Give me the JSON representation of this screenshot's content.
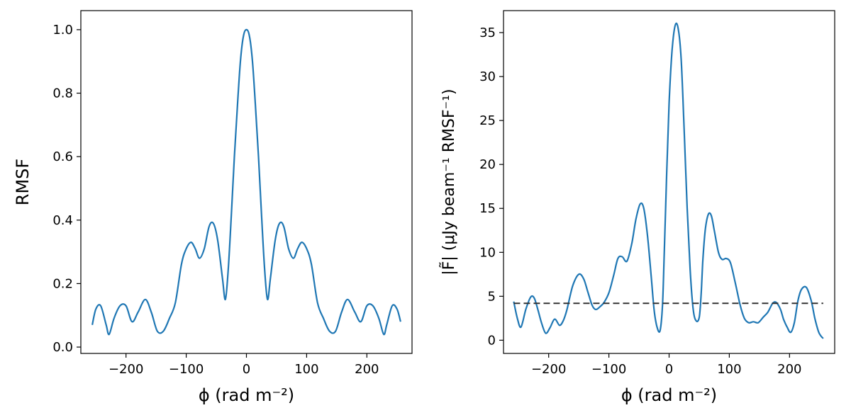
{
  "chart_data": [
    {
      "type": "line",
      "xlabel": "ϕ (rad m⁻²)",
      "ylabel": "RMSF",
      "xlim": [
        -275,
        275
      ],
      "ylim": [
        -0.02,
        1.06
      ],
      "xticks": [
        -200,
        -100,
        0,
        100,
        200
      ],
      "xtick_labels": [
        "−200",
        "−100",
        "0",
        "100",
        "200"
      ],
      "yticks": [
        0.0,
        0.2,
        0.4,
        0.6,
        0.8,
        1.0
      ],
      "ytick_labels": [
        "0.0",
        "0.2",
        "0.4",
        "0.6",
        "0.8",
        "1.0"
      ],
      "grid": false,
      "series": [
        {
          "color": "#1f77b4",
          "x": [
            -256,
            -250,
            -242,
            -233,
            -228,
            -220,
            -210,
            -200,
            -190,
            -180,
            -168,
            -158,
            -148,
            -138,
            -128,
            -118,
            -108,
            -100,
            -92,
            -85,
            -78,
            -70,
            -62,
            -55,
            -48,
            -40,
            -35,
            -30,
            -25,
            -20,
            -15,
            -10,
            -5,
            0,
            5,
            10,
            15,
            20,
            25,
            30,
            35,
            40,
            48,
            55,
            62,
            70,
            78,
            85,
            92,
            100,
            108,
            118,
            128,
            138,
            148,
            158,
            168,
            180,
            190,
            200,
            210,
            220,
            228,
            233,
            242,
            250,
            256
          ],
          "y": [
            0.07,
            0.12,
            0.13,
            0.07,
            0.04,
            0.09,
            0.13,
            0.13,
            0.08,
            0.11,
            0.15,
            0.11,
            0.05,
            0.05,
            0.09,
            0.14,
            0.26,
            0.31,
            0.33,
            0.31,
            0.28,
            0.31,
            0.38,
            0.39,
            0.34,
            0.22,
            0.15,
            0.25,
            0.42,
            0.6,
            0.76,
            0.9,
            0.98,
            1.0,
            0.98,
            0.9,
            0.76,
            0.6,
            0.42,
            0.25,
            0.15,
            0.22,
            0.34,
            0.39,
            0.38,
            0.31,
            0.28,
            0.31,
            0.33,
            0.31,
            0.26,
            0.14,
            0.09,
            0.05,
            0.05,
            0.11,
            0.15,
            0.11,
            0.08,
            0.13,
            0.13,
            0.09,
            0.04,
            0.07,
            0.13,
            0.12,
            0.08
          ]
        }
      ]
    },
    {
      "type": "line",
      "xlabel": "ϕ (rad m⁻²)",
      "ylabel": "|F̃| (μJy beam⁻¹ RMSF⁻¹)",
      "xlim": [
        -275,
        275
      ],
      "ylim": [
        -1.5,
        37.5
      ],
      "xticks": [
        -200,
        -100,
        0,
        100,
        200
      ],
      "xtick_labels": [
        "−200",
        "−100",
        "0",
        "100",
        "200"
      ],
      "yticks": [
        0,
        5,
        10,
        15,
        20,
        25,
        30,
        35
      ],
      "ytick_labels": [
        "0",
        "5",
        "10",
        "15",
        "20",
        "25",
        "30",
        "35"
      ],
      "grid": false,
      "series": [
        {
          "color": "#1f77b4",
          "x": [
            -258,
            -252,
            -246,
            -238,
            -230,
            -224,
            -218,
            -212,
            -205,
            -198,
            -190,
            -182,
            -176,
            -170,
            -160,
            -150,
            -142,
            -135,
            -128,
            -122,
            -115,
            -108,
            -100,
            -92,
            -85,
            -78,
            -70,
            -62,
            -55,
            -48,
            -42,
            -36,
            -30,
            -25,
            -20,
            -15,
            -11,
            -8,
            -4,
            0,
            5,
            10,
            15,
            20,
            25,
            30,
            35,
            40,
            45,
            50,
            53,
            56,
            60,
            65,
            70,
            75,
            82,
            88,
            95,
            102,
            110,
            118,
            125,
            132,
            140,
            148,
            156,
            164,
            172,
            178,
            185,
            190,
            196,
            202,
            208,
            214,
            220,
            228,
            236,
            242,
            248,
            252,
            256
          ],
          "y": [
            4.4,
            2.5,
            1.5,
            3.5,
            4.9,
            4.8,
            3.5,
            2.0,
            0.8,
            1.4,
            2.4,
            1.7,
            2.2,
            3.4,
            6.2,
            7.5,
            7.0,
            5.5,
            4.0,
            3.5,
            3.8,
            4.3,
            5.4,
            7.4,
            9.3,
            9.5,
            9.0,
            11.0,
            13.8,
            15.5,
            15.0,
            12.0,
            7.5,
            3.5,
            1.5,
            1.1,
            4.0,
            10.0,
            19.0,
            27.0,
            33.0,
            35.8,
            35.5,
            32.0,
            24.0,
            15.0,
            8.0,
            3.5,
            2.2,
            2.6,
            5.0,
            9.0,
            12.5,
            14.3,
            14.2,
            12.5,
            10.0,
            9.2,
            9.3,
            8.8,
            6.5,
            4.0,
            2.5,
            2.0,
            2.1,
            2.0,
            2.6,
            3.2,
            4.2,
            4.3,
            3.5,
            2.4,
            1.5,
            0.9,
            2.0,
            4.5,
            5.8,
            6.0,
            4.5,
            2.5,
            1.0,
            0.5,
            0.2
          ]
        }
      ],
      "reference_line": {
        "y": 4.2,
        "x_range": [
          -258,
          256
        ],
        "style": "dashed",
        "color": "#333333"
      }
    }
  ]
}
